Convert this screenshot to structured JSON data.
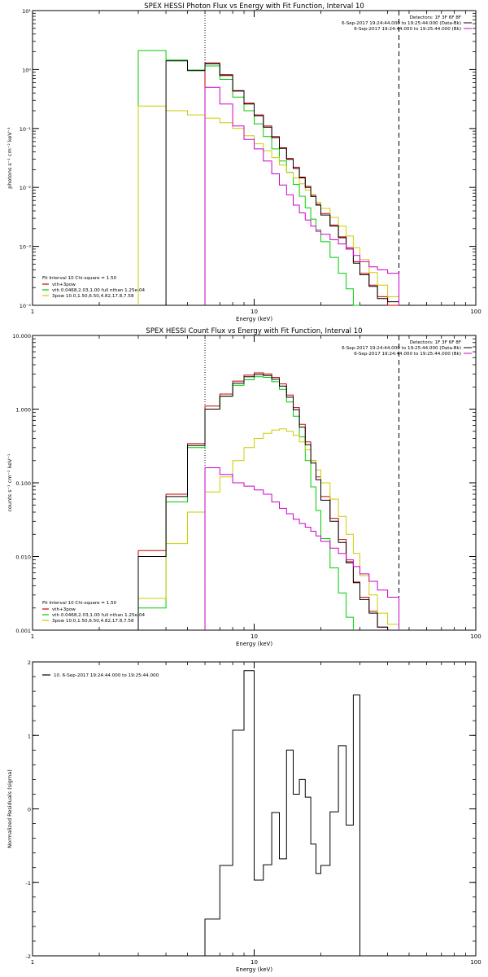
{
  "colors": {
    "data": "#000000",
    "fit": "#cc0000",
    "vth": "#00cc00",
    "3pow": "#cccc00",
    "bk": "#cc00cc"
  },
  "chart_data": [
    {
      "type": "line",
      "title": "SPEX HESSI Photon Flux vs Energy with Fit Function, Interval 10",
      "xlabel": "Energy (keV)",
      "ylabel": "photons s⁻¹ cm⁻² keV⁻¹",
      "xscale": "log",
      "yscale": "log",
      "xlim": [
        1,
        100
      ],
      "ylim": [
        0.0001,
        10
      ],
      "xticks": [
        {
          "v": 1,
          "label": "1"
        },
        {
          "v": 10,
          "label": "10"
        },
        {
          "v": 100,
          "label": "100"
        }
      ],
      "yticks": [
        {
          "v": 0.0001,
          "label": "10⁻⁴"
        },
        {
          "v": 0.001,
          "label": "10⁻³"
        },
        {
          "v": 0.01,
          "label": "10⁻²"
        },
        {
          "v": 0.1,
          "label": "10⁻¹"
        },
        {
          "v": 1,
          "label": "10⁰"
        },
        {
          "v": 10,
          "label": "10¹"
        }
      ],
      "info_lines": [
        "Detectors: 1F 3F 6F 8F",
        "6-Sep-2017 19:24:44.000 to 19:25:44.000 (Data-Bk)",
        "6-Sep-2017 19:24:44.000 to 19:25:44.000 (Bk)"
      ],
      "fit_text": "Fit Interval 10   Chi-square = 1.50",
      "legend": [
        {
          "label": "vth+3pow",
          "color": "#cc0000"
        },
        {
          "label": "vth 0.0468,2.03,1.00  full nthan 1.25e-04",
          "color": "#00cc00"
        },
        {
          "label": "3pow 10.0,1.50,6.50,4.82,17.8,7.58",
          "color": "#cccc00"
        }
      ],
      "vlines": [
        {
          "x": 6,
          "style": "dotted"
        },
        {
          "x": 45,
          "style": "dashed"
        }
      ],
      "edges": [
        3,
        4,
        5,
        6,
        7,
        8,
        9,
        10,
        11,
        12,
        13,
        14,
        15,
        16,
        17,
        18,
        19,
        20,
        22,
        24,
        26,
        28,
        30,
        33,
        36,
        40,
        45
      ],
      "series": [
        {
          "name": "vth+3pow",
          "color": "#cc0000",
          "values": [
            null,
            null,
            null,
            1.3,
            0.82,
            0.44,
            0.27,
            0.17,
            0.11,
            0.073,
            0.047,
            0.031,
            0.022,
            0.015,
            0.0105,
            0.0074,
            0.0052,
            0.0036,
            0.0023,
            0.00145,
            0.00095,
            0.00055,
            0.00035,
            0.00022,
            0.00014,
            0.0001
          ]
        },
        {
          "name": "vth",
          "color": "#00cc00",
          "values": [
            2.1,
            1.45,
            0.98,
            1.15,
            0.68,
            0.34,
            0.2,
            0.12,
            0.073,
            0.045,
            0.028,
            0.018,
            0.0112,
            0.0071,
            0.0045,
            0.0029,
            0.0019,
            0.0012,
            0.00065,
            0.00035,
            0.00019,
            0.0001,
            null,
            null,
            null,
            null
          ]
        },
        {
          "name": "3pow",
          "color": "#cccc00",
          "values": [
            0.24,
            0.2,
            0.17,
            0.15,
            0.125,
            0.1,
            0.075,
            0.055,
            0.042,
            0.032,
            0.024,
            0.018,
            0.0145,
            0.0115,
            0.009,
            0.0072,
            0.0056,
            0.0044,
            0.0031,
            0.0022,
            0.0015,
            0.00095,
            0.0006,
            0.00036,
            0.00022,
            0.00014
          ]
        },
        {
          "name": "Data-Bk",
          "color": "#000000",
          "values": [
            null,
            1.4,
            0.96,
            1.25,
            0.79,
            0.43,
            0.26,
            0.165,
            0.105,
            0.07,
            0.046,
            0.03,
            0.021,
            0.0145,
            0.01,
            0.007,
            0.005,
            0.0034,
            0.0022,
            0.0014,
            0.0009,
            0.00052,
            0.00033,
            0.00021,
            0.00013,
            0.000115
          ]
        },
        {
          "name": "Bk",
          "color": "#cc00cc",
          "values": [
            null,
            null,
            null,
            0.5,
            0.26,
            0.11,
            0.065,
            0.045,
            0.028,
            0.017,
            0.011,
            0.0075,
            0.005,
            0.0037,
            0.0028,
            0.0022,
            0.0018,
            0.0016,
            0.0013,
            0.0011,
            0.0009,
            0.0007,
            0.00055,
            0.00045,
            0.0004,
            0.00035
          ]
        }
      ]
    },
    {
      "type": "line",
      "title": "SPEX HESSI Count Flux vs Energy with Fit Function, Interval 10",
      "xlabel": "Energy (keV)",
      "ylabel": "counts s⁻¹ cm⁻² keV⁻¹",
      "xscale": "log",
      "yscale": "log",
      "xlim": [
        1,
        100
      ],
      "ylim": [
        0.001,
        10
      ],
      "xticks": [
        {
          "v": 1,
          "label": "1"
        },
        {
          "v": 10,
          "label": "10"
        },
        {
          "v": 100,
          "label": "100"
        }
      ],
      "yticks": [
        {
          "v": 0.001,
          "label": "0.001"
        },
        {
          "v": 0.01,
          "label": "0.010"
        },
        {
          "v": 0.1,
          "label": "0.100"
        },
        {
          "v": 1,
          "label": "1.000"
        },
        {
          "v": 10,
          "label": "10.000"
        }
      ],
      "info_lines": [
        "Detectors: 1F 3F 6F 8F",
        "6-Sep-2017 19:24:44.000 to 19:25:44.000 (Data-Bk)",
        "6-Sep-2017 19:24:44.000 to 19:25:44.000 (Bk)"
      ],
      "fit_text": "Fit Interval 10   Chi-square = 1.50",
      "legend": [
        {
          "label": "vth+3pow",
          "color": "#cc0000"
        },
        {
          "label": "vth 0.0468,2.03,1.00  full nthan 1.25e-04",
          "color": "#00cc00"
        },
        {
          "label": "3pow 10.0,1.50,6.50,4.82,17.8,7.58",
          "color": "#cccc00"
        }
      ],
      "vlines": [
        {
          "x": 6,
          "style": "dotted"
        },
        {
          "x": 45,
          "style": "dashed"
        }
      ],
      "edges": [
        3,
        4,
        5,
        6,
        7,
        8,
        9,
        10,
        11,
        12,
        13,
        14,
        15,
        16,
        17,
        18,
        19,
        20,
        22,
        24,
        26,
        28,
        30,
        33,
        36,
        40,
        45
      ],
      "series": [
        {
          "name": "vth+3pow",
          "color": "#cc0000",
          "values": [
            0.012,
            0.07,
            0.34,
            1.1,
            1.6,
            2.4,
            2.9,
            3.1,
            3.0,
            2.7,
            2.2,
            1.55,
            1.05,
            0.62,
            0.36,
            0.2,
            0.12,
            0.065,
            0.033,
            0.017,
            0.0085,
            0.0045,
            0.0028,
            0.0018,
            0.0011,
            0.0009
          ]
        },
        {
          "name": "vth",
          "color": "#00cc00",
          "values": [
            0.002,
            0.055,
            0.3,
            1.0,
            1.5,
            2.1,
            2.5,
            2.75,
            2.7,
            2.35,
            1.85,
            1.25,
            0.8,
            0.42,
            0.2,
            0.088,
            0.042,
            0.0175,
            0.007,
            0.0032,
            0.0015,
            null,
            null,
            null,
            null,
            null
          ]
        },
        {
          "name": "3pow",
          "color": "#cccc00",
          "values": [
            0.0027,
            0.015,
            0.04,
            0.075,
            0.12,
            0.2,
            0.3,
            0.4,
            0.47,
            0.52,
            0.54,
            0.5,
            0.44,
            0.36,
            0.28,
            0.2,
            0.15,
            0.1,
            0.06,
            0.035,
            0.02,
            0.011,
            0.0055,
            0.003,
            0.0017,
            0.0012
          ]
        },
        {
          "name": "Data-Bk",
          "color": "#000000",
          "values": [
            0.01,
            0.065,
            0.32,
            1.0,
            1.5,
            2.25,
            2.75,
            2.95,
            2.85,
            2.55,
            2.05,
            1.45,
            0.98,
            0.57,
            0.33,
            0.185,
            0.11,
            0.058,
            0.03,
            0.0155,
            0.0082,
            0.0044,
            0.0026,
            0.0017,
            0.0011,
            0.0009
          ]
        },
        {
          "name": "Bk",
          "color": "#cc00cc",
          "values": [
            null,
            null,
            null,
            0.16,
            0.13,
            0.1,
            0.09,
            0.08,
            0.07,
            0.055,
            0.045,
            0.038,
            0.032,
            0.028,
            0.025,
            0.022,
            0.019,
            0.016,
            0.013,
            0.011,
            0.009,
            0.0073,
            0.0058,
            0.0046,
            0.0035,
            0.0028
          ]
        }
      ]
    },
    {
      "type": "line",
      "title": "",
      "xlabel": "Energy (keV)",
      "ylabel": "Normalized Residuals (sigma)",
      "xscale": "log",
      "yscale": "linear",
      "xlim": [
        1,
        100
      ],
      "ylim": [
        -2,
        2
      ],
      "xticks": [
        {
          "v": 1,
          "label": "1"
        },
        {
          "v": 10,
          "label": "10"
        },
        {
          "v": 100,
          "label": "100"
        }
      ],
      "yticks": [
        {
          "v": -2,
          "label": "-2"
        },
        {
          "v": -1,
          "label": "-1"
        },
        {
          "v": 0,
          "label": "0"
        },
        {
          "v": 1,
          "label": "1"
        },
        {
          "v": 2,
          "label": "2"
        }
      ],
      "legend": [
        {
          "label": "10.  6-Sep-2017 19:24:44.000 to 19:25:44.000",
          "color": "#000000"
        }
      ],
      "edges": [
        6,
        7,
        8,
        9,
        10,
        11,
        12,
        13,
        14,
        15,
        16,
        17,
        18,
        19,
        20,
        22,
        24,
        26,
        28,
        30,
        33,
        36,
        40,
        45
      ],
      "series": [
        {
          "name": "10.  6-Sep-2017 19:24:44.000 to 19:25:44.000",
          "color": "#000000",
          "values": [
            -1.5,
            -0.77,
            1.07,
            1.88,
            -0.97,
            -0.76,
            -0.05,
            -0.68,
            0.8,
            0.2,
            0.4,
            0.16,
            -0.48,
            -0.88,
            -0.77,
            -0.04,
            0.86,
            -0.22,
            1.55,
            null,
            null,
            null,
            null
          ]
        }
      ]
    }
  ]
}
